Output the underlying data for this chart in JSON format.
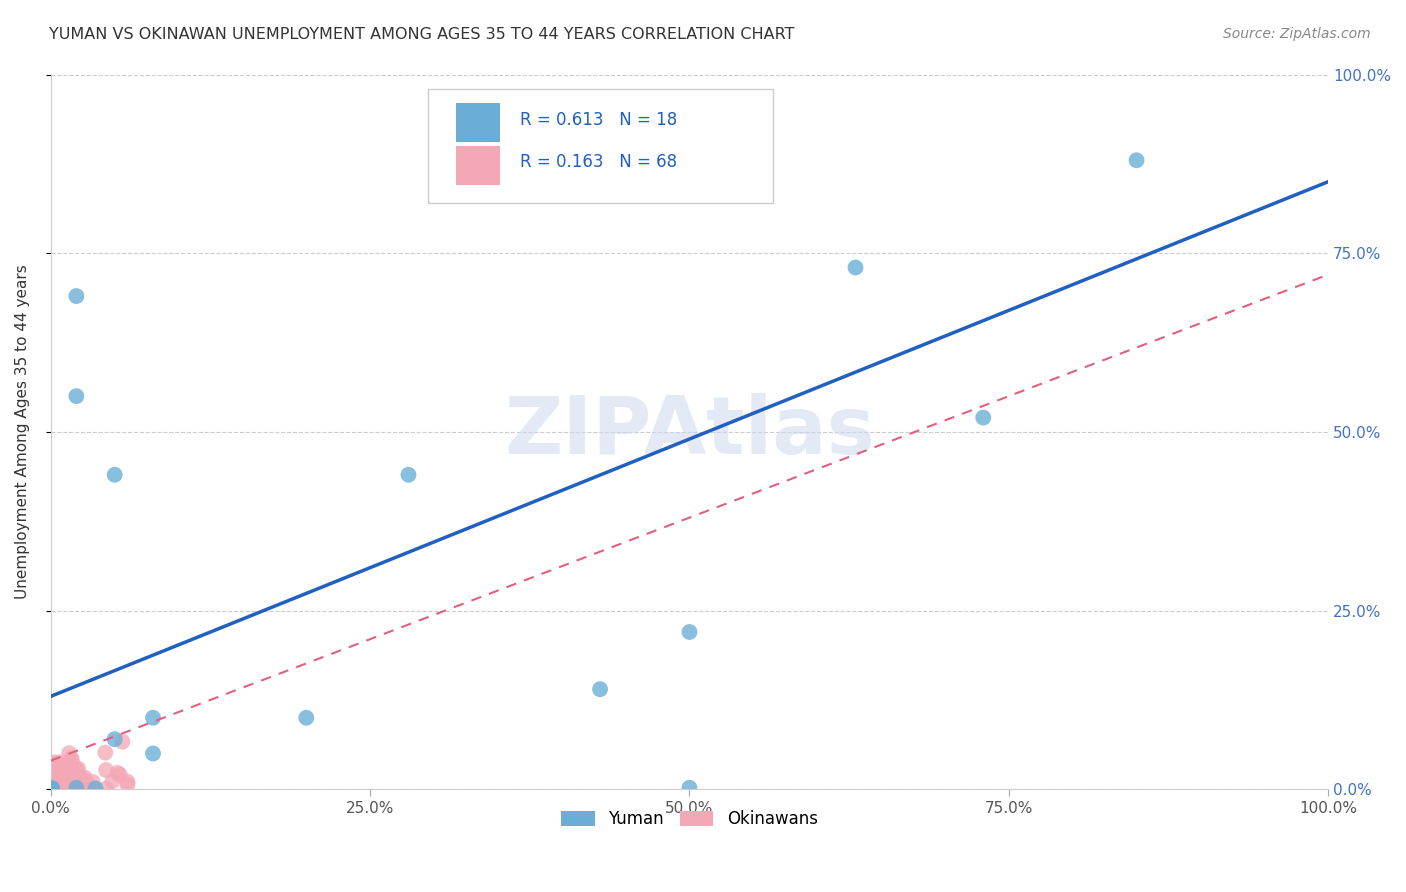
{
  "title": "YUMAN VS OKINAWAN UNEMPLOYMENT AMONG AGES 35 TO 44 YEARS CORRELATION CHART",
  "source": "Source: ZipAtlas.com",
  "ylabel": "Unemployment Among Ages 35 to 44 years",
  "xlim": [
    0,
    1
  ],
  "ylim": [
    0,
    1
  ],
  "xtick_labels": [
    "0.0%",
    "25.0%",
    "50.0%",
    "75.0%",
    "100.0%"
  ],
  "xtick_values": [
    0,
    0.25,
    0.5,
    0.75,
    1.0
  ],
  "ytick_labels": [
    "0.0%",
    "25.0%",
    "50.0%",
    "75.0%",
    "100.0%"
  ],
  "ytick_values": [
    0,
    0.25,
    0.5,
    0.75,
    1.0
  ],
  "yuman_x": [
    0.02,
    0.02,
    0.05,
    0.08,
    0.08,
    0.05,
    0.02,
    0.28,
    0.2,
    0.5,
    0.63,
    0.73,
    0.85,
    0.43,
    0.5
  ],
  "yuman_y": [
    0.69,
    0.55,
    0.07,
    0.05,
    0.1,
    0.44,
    0.002,
    0.44,
    0.1,
    0.22,
    0.73,
    0.52,
    0.88,
    0.14,
    0.002
  ],
  "yuman_color": "#6aaed6",
  "okinawan_color": "#f4a7b5",
  "yuman_line_color": "#2060c0",
  "okinawan_line_color": "#e06080",
  "R_yuman": 0.613,
  "N_yuman": 18,
  "R_okinawan": 0.163,
  "N_okinawan": 68,
  "yuman_line_x": [
    0.0,
    1.0
  ],
  "yuman_line_y": [
    0.13,
    0.85
  ],
  "okinawan_line_x": [
    0.0,
    1.0
  ],
  "okinawan_line_y": [
    0.04,
    0.72
  ],
  "marker_size": 130,
  "watermark": "ZIPAtlas",
  "tick_label_color_x": "#555555",
  "tick_label_color_y_right": "#4472c4"
}
